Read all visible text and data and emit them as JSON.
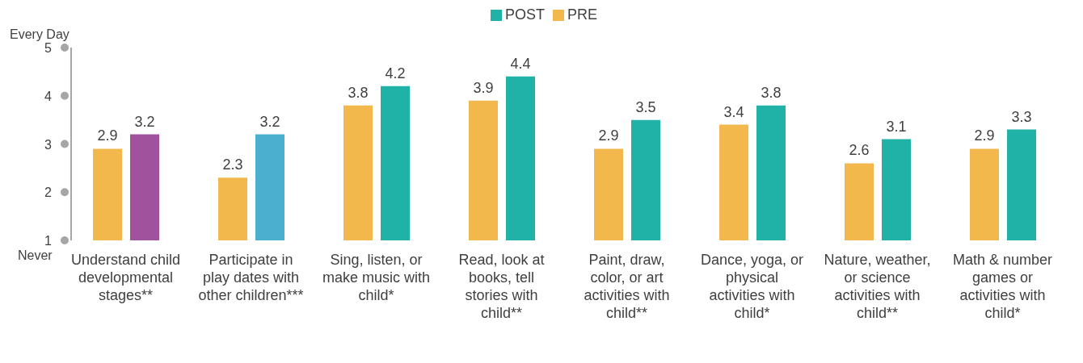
{
  "chart_data": {
    "type": "bar",
    "categories": [
      "Understand child developmental stages**",
      "Participate in play dates with other children***",
      "Sing, listen, or make music with child*",
      "Read, look at books, tell stories with child**",
      "Paint, draw, color, or art activities with child**",
      "Dance, yoga, or physical activities with child*",
      "Nature, weather, or science activities with child**",
      "Math & number games or activities with child*"
    ],
    "series": [
      {
        "name": "PRE",
        "color": "#f2b84b",
        "values": [
          2.9,
          2.3,
          3.8,
          3.9,
          2.9,
          3.4,
          2.6,
          2.9
        ]
      },
      {
        "name": "POST",
        "color": "#20b2a6",
        "colors": [
          "#a0529c",
          "#4bafd0",
          "#20b2a6",
          "#20b2a6",
          "#20b2a6",
          "#20b2a6",
          "#20b2a6",
          "#20b2a6"
        ],
        "values": [
          3.2,
          3.2,
          4.2,
          4.4,
          3.5,
          3.8,
          3.1,
          3.3
        ]
      }
    ],
    "ylim": [
      1,
      5
    ],
    "yticks": [
      1,
      2,
      3,
      4,
      5
    ],
    "annotations": [
      "Every Day",
      "Never"
    ],
    "data_labels": true,
    "legend": "top",
    "grid": false
  }
}
